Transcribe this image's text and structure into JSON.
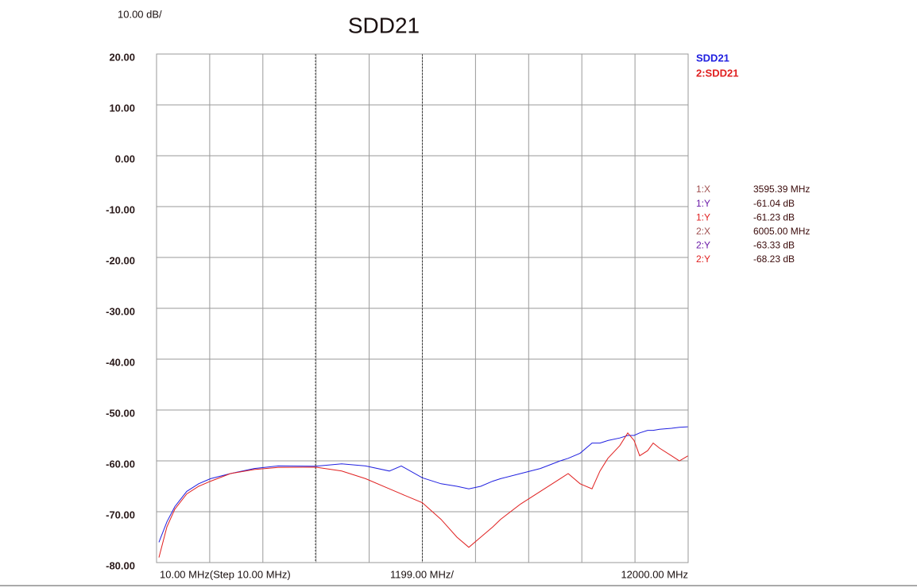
{
  "chart_data": {
    "type": "line",
    "title": "SDD21",
    "scale_label": "10.00 dB/",
    "x_start_label": "10.00 MHz(Step 10.00 MHz)",
    "x_scale_label": "1199.00 MHz/",
    "x_stop_label": "12000.00 MHz",
    "xlim": [
      10,
      12000
    ],
    "xticks": [
      10,
      1209,
      2408,
      3607,
      4806,
      6005,
      7204,
      8403,
      9602,
      10801,
      12000
    ],
    "ylim": [
      -80,
      20
    ],
    "yticks": [
      {
        "value": 20,
        "label": "20.00"
      },
      {
        "value": 10,
        "label": "10.00"
      },
      {
        "value": 0,
        "label": "0.00"
      },
      {
        "value": -10,
        "label": "-10.00"
      },
      {
        "value": -20,
        "label": "-20.00"
      },
      {
        "value": -30,
        "label": "-30.00"
      },
      {
        "value": -40,
        "label": "-40.00"
      },
      {
        "value": -50,
        "label": "-50.00"
      },
      {
        "value": -60,
        "label": "-60.00"
      },
      {
        "value": -70,
        "label": "-70.00"
      },
      {
        "value": -80,
        "label": "-80.00"
      }
    ],
    "grid": true,
    "legend": "top-right",
    "x": [
      64,
      243,
      422,
      691,
      960,
      1229,
      1677,
      2214,
      2752,
      3595,
      4186,
      4724,
      5261,
      5530,
      6005,
      6426,
      6785,
      7053,
      7322,
      7591,
      7770,
      8218,
      8666,
      9114,
      9294,
      9563,
      9831,
      10011,
      10190,
      10459,
      10638,
      10782,
      10907,
      11086,
      11212,
      11355,
      11624,
      11803,
      12000
    ],
    "series": [
      {
        "name": "SDD21",
        "color": "#2020e0",
        "values": [
          -76,
          -72,
          -69,
          -66,
          -64.5,
          -63.5,
          -62.5,
          -61.5,
          -61,
          -61.04,
          -60.6,
          -61,
          -62,
          -61,
          -63.33,
          -64.5,
          -65,
          -65.5,
          -65,
          -64,
          -63.5,
          -62.5,
          -61.5,
          -60,
          -59.5,
          -58.5,
          -56.5,
          -56.5,
          -56,
          -55.5,
          -55,
          -55,
          -54.5,
          -54,
          -54,
          -53.8,
          -53.6,
          -53.4,
          -53.3
        ]
      },
      {
        "name": "2:SDD21",
        "color": "#e02020",
        "values": [
          -79,
          -73,
          -69.5,
          -66.5,
          -65,
          -64,
          -62.5,
          -61.7,
          -61.3,
          -61.23,
          -62,
          -63.5,
          -65.5,
          -66.5,
          -68.23,
          -71.5,
          -75,
          -77,
          -75,
          -73,
          -71.5,
          -68.5,
          -66,
          -63.5,
          -62.5,
          -64.5,
          -65.5,
          -62,
          -59.5,
          -57,
          -54.5,
          -56,
          -59,
          -58,
          -56.5,
          -57.5,
          -59,
          -60,
          -59
        ]
      }
    ],
    "markers": [
      3595.39,
      6005
    ],
    "readouts": [
      {
        "label": "1:X",
        "value": "3595.39 MHz",
        "color": "#a05050"
      },
      {
        "label": "1:Y",
        "value": "-61.04 dB",
        "color": "#6a1aa8"
      },
      {
        "label": "1:Y",
        "value": "-61.23 dB",
        "color": "#e02020"
      },
      {
        "label": "2:X",
        "value": "6005.00 MHz",
        "color": "#a05050"
      },
      {
        "label": "2:Y",
        "value": "-63.33 dB",
        "color": "#6a1aa8"
      },
      {
        "label": "2:Y",
        "value": "-68.23 dB",
        "color": "#e02020"
      }
    ]
  }
}
